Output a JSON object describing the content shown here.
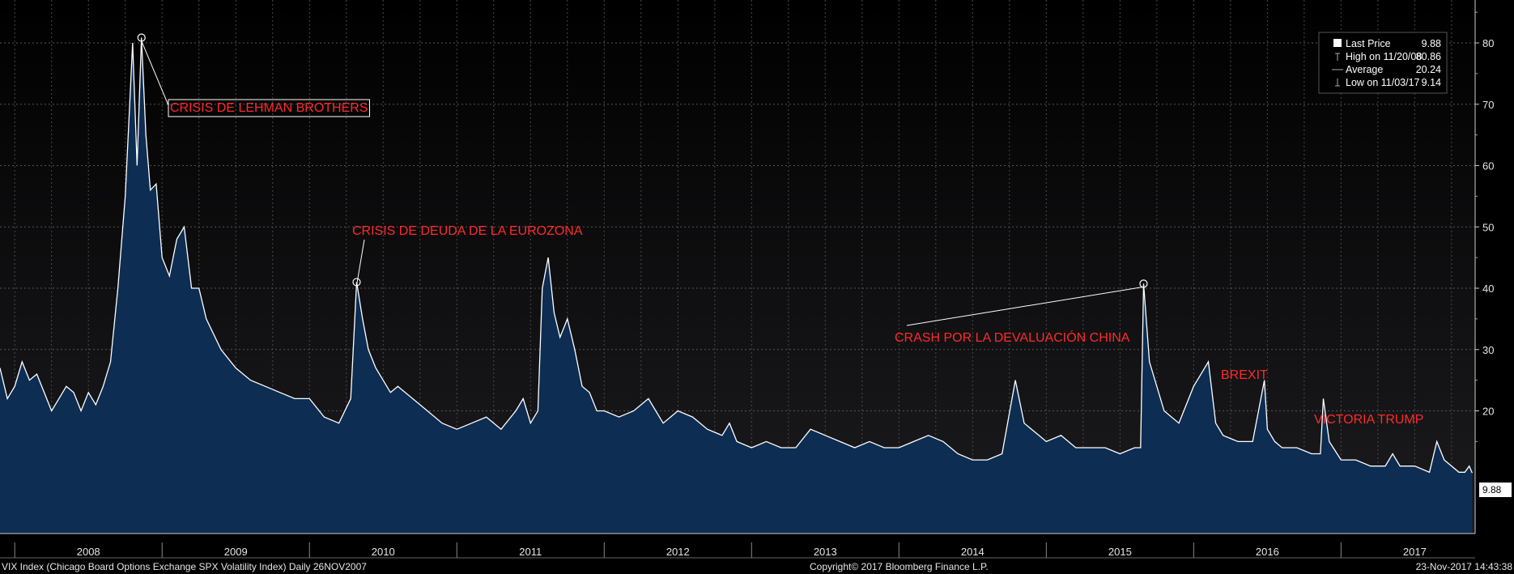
{
  "chart_data": {
    "type": "area",
    "title": "",
    "xlabel": "",
    "ylabel": "",
    "ylim": [
      0,
      87
    ],
    "yticks": [
      "20",
      "30",
      "40",
      "50",
      "60",
      "70",
      "80"
    ],
    "year_labels": [
      "2008",
      "2009",
      "2010",
      "2011",
      "2012",
      "2013",
      "2014",
      "2015",
      "2016",
      "2017"
    ],
    "grid": "on",
    "x_unit": "years (decimal)",
    "series": [
      {
        "color": "#ffffff",
        "fill": "#0d2d52",
        "x": [
          2007.9,
          2007.95,
          2008.0,
          2008.05,
          2008.1,
          2008.15,
          2008.2,
          2008.25,
          2008.3,
          2008.35,
          2008.4,
          2008.45,
          2008.5,
          2008.55,
          2008.6,
          2008.65,
          2008.7,
          2008.75,
          2008.78,
          2008.8,
          2008.83,
          2008.86,
          2008.89,
          2008.92,
          2008.96,
          2009.0,
          2009.05,
          2009.1,
          2009.15,
          2009.2,
          2009.25,
          2009.3,
          2009.4,
          2009.5,
          2009.6,
          2009.7,
          2009.8,
          2009.9,
          2010.0,
          2010.1,
          2010.2,
          2010.28,
          2010.32,
          2010.36,
          2010.4,
          2010.45,
          2010.5,
          2010.55,
          2010.6,
          2010.7,
          2010.8,
          2010.9,
          2011.0,
          2011.1,
          2011.2,
          2011.3,
          2011.4,
          2011.45,
          2011.5,
          2011.55,
          2011.58,
          2011.62,
          2011.66,
          2011.7,
          2011.75,
          2011.8,
          2011.85,
          2011.9,
          2011.95,
          2012.0,
          2012.1,
          2012.2,
          2012.3,
          2012.4,
          2012.45,
          2012.5,
          2012.6,
          2012.7,
          2012.8,
          2012.85,
          2012.9,
          2013.0,
          2013.1,
          2013.2,
          2013.3,
          2013.4,
          2013.5,
          2013.6,
          2013.7,
          2013.8,
          2013.9,
          2014.0,
          2014.1,
          2014.2,
          2014.3,
          2014.4,
          2014.5,
          2014.6,
          2014.7,
          2014.79,
          2014.85,
          2014.95,
          2015.0,
          2015.1,
          2015.2,
          2015.3,
          2015.4,
          2015.5,
          2015.6,
          2015.64,
          2015.66,
          2015.7,
          2015.75,
          2015.8,
          2015.9,
          2016.0,
          2016.05,
          2016.1,
          2016.15,
          2016.2,
          2016.3,
          2016.4,
          2016.48,
          2016.5,
          2016.55,
          2016.6,
          2016.7,
          2016.8,
          2016.86,
          2016.88,
          2016.92,
          2017.0,
          2017.1,
          2017.2,
          2017.3,
          2017.35,
          2017.4,
          2017.5,
          2017.6,
          2017.65,
          2017.7,
          2017.8,
          2017.84,
          2017.87,
          2017.89
        ],
        "y": [
          27,
          22,
          24,
          28,
          25,
          26,
          23,
          20,
          22,
          24,
          23,
          20,
          23,
          21,
          24,
          28,
          40,
          55,
          70,
          80,
          60,
          80.86,
          65,
          56,
          57,
          45,
          42,
          48,
          50,
          40,
          40,
          35,
          30,
          27,
          25,
          24,
          23,
          22,
          22,
          19,
          18,
          22,
          41,
          35,
          30,
          27,
          25,
          23,
          24,
          22,
          20,
          18,
          17,
          18,
          19,
          17,
          20,
          22,
          18,
          20,
          40,
          45,
          36,
          32,
          35,
          30,
          24,
          23,
          20,
          20,
          19,
          20,
          22,
          18,
          19,
          20,
          19,
          17,
          16,
          18,
          15,
          14,
          15,
          14,
          14,
          17,
          16,
          15,
          14,
          15,
          14,
          14,
          15,
          16,
          15,
          13,
          12,
          12,
          13,
          25,
          18,
          16,
          15,
          16,
          14,
          14,
          14,
          13,
          14,
          14,
          40.74,
          28,
          24,
          20,
          18,
          24,
          26,
          28,
          18,
          16,
          15,
          15,
          25,
          17,
          15,
          14,
          14,
          13,
          13,
          22,
          15,
          12,
          12,
          11,
          11,
          13,
          11,
          11,
          10,
          15,
          12,
          10,
          10,
          11,
          9.88
        ]
      }
    ],
    "annotations": [
      {
        "text": "CRISIS DE LEHMAN BROTHERS",
        "x": 2008.86,
        "y": 80.86,
        "boxed": true
      },
      {
        "text": "CRISIS DE DEUDA DE LA EUROZONA",
        "x": 2010.32,
        "y": 41
      },
      {
        "text": "CRASH POR LA DEVALUACIÓN CHINA",
        "x": 2015.66,
        "y": 40.74
      },
      {
        "text": "BREXIT",
        "x": 2016.48,
        "y": 25
      },
      {
        "text": "VICTORIA TRUMP",
        "x": 2016.86,
        "y": 22
      }
    ],
    "legend": {
      "placement": "top-right",
      "items": [
        {
          "label": "Last Price",
          "value": "9.88",
          "marker": "square"
        },
        {
          "label": "High on 11/20/08",
          "value": "80.86",
          "marker": "high"
        },
        {
          "label": "Average",
          "value": "20.24",
          "marker": "average"
        },
        {
          "label": "Low on 11/03/17",
          "value": "9.14",
          "marker": "low"
        }
      ]
    },
    "last_price_label": "9.88",
    "footer": {
      "left": "VIX Index (Chicago Board Options Exchange SPX Volatility Index)  Daily 26NOV2007",
      "center": "Copyright© 2017 Bloomberg Finance L.P.",
      "right": "23-Nov-2017 14:43:38"
    }
  }
}
